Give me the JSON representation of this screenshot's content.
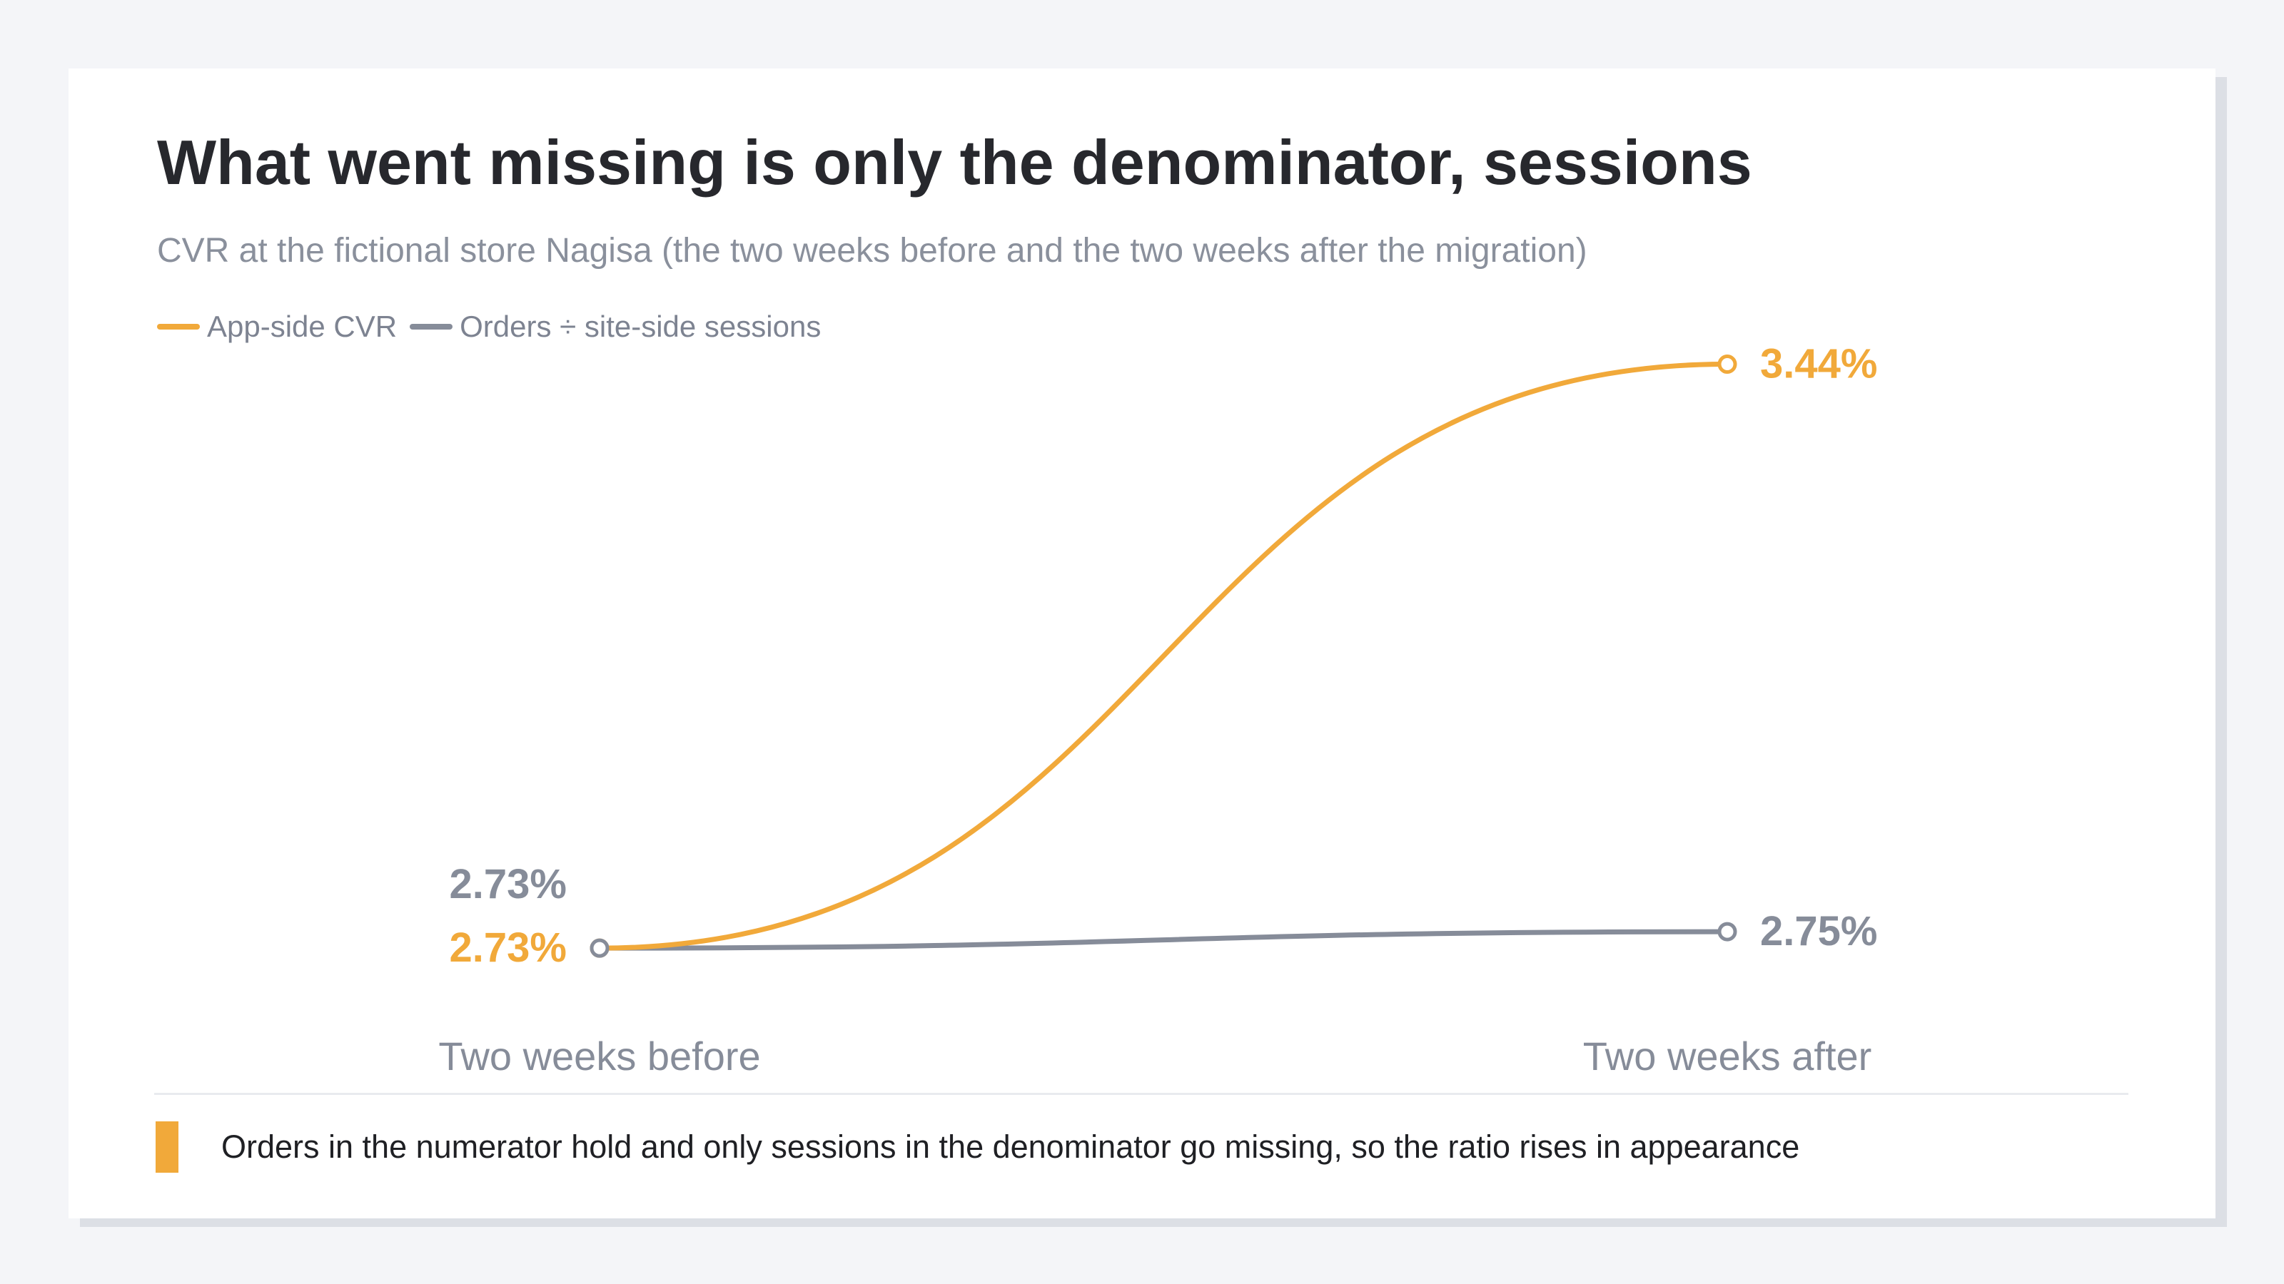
{
  "title": "What went missing is only the denominator, sessions",
  "subtitle": "CVR at the fictional store Nagisa (the two weeks before and the two weeks after the migration)",
  "footer_note": "Orders in the numerator hold and only sessions in the denominator go missing, so the ratio rises in appearance",
  "colors": {
    "app_side": "#f1a93a",
    "site_side": "#868c99",
    "accent": "#f1a93a"
  },
  "chart_data": {
    "type": "line",
    "title": "What went missing is only the denominator, sessions",
    "subtitle": "CVR at the fictional store Nagisa (the two weeks before and the two weeks after the migration)",
    "categories": [
      "Two weeks before",
      "Two weeks after"
    ],
    "unit": "%",
    "series": [
      {
        "name": "App-side CVR",
        "color": "#f1a93a",
        "values": [
          2.73,
          3.44
        ],
        "labels": [
          "2.73%",
          "3.44%"
        ]
      },
      {
        "name": "Orders ÷ site-side sessions",
        "color": "#868c99",
        "values": [
          2.73,
          2.75
        ],
        "labels": [
          "2.73%",
          "2.75%"
        ]
      }
    ],
    "ylim": [
      2.62,
      3.6
    ],
    "legend": "top-left",
    "grid": false,
    "markers": "hollow-circle",
    "curve": "smooth"
  }
}
